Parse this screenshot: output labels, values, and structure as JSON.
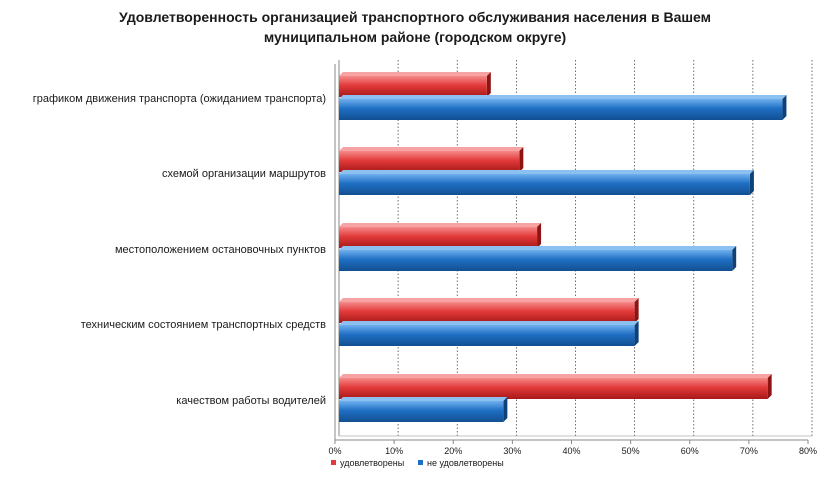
{
  "chart_data": {
    "type": "bar",
    "orientation": "horizontal",
    "title_lines": [
      "Удовлетворенность организацией транспортного обслуживания населения в Вашем",
      "муниципальном районе (городском округе)"
    ],
    "categories": [
      "графиком движения транспорта (ожиданием транспорта)",
      "схемой организации маршрутов",
      "местоположением остановочных пунктов",
      "техническим состоянием транспортных средств",
      "качеством работы водителей"
    ],
    "series": [
      {
        "name": "удовлетворены",
        "color": "#e23a3a",
        "values": [
          25,
          30.5,
          33.5,
          50,
          72.5
        ]
      },
      {
        "name": "не удовлетворены",
        "color": "#1f6fc4",
        "values": [
          75,
          69.5,
          66.5,
          50,
          27.8
        ]
      }
    ],
    "xlim": [
      0,
      80
    ],
    "ticks": [
      0,
      10,
      20,
      30,
      40,
      50,
      60,
      70,
      80
    ],
    "tick_labels": [
      "0%",
      "10%",
      "20%",
      "30%",
      "40%",
      "50%",
      "60%",
      "70%",
      "80%"
    ],
    "grid": true,
    "legend_position": "bottom"
  }
}
